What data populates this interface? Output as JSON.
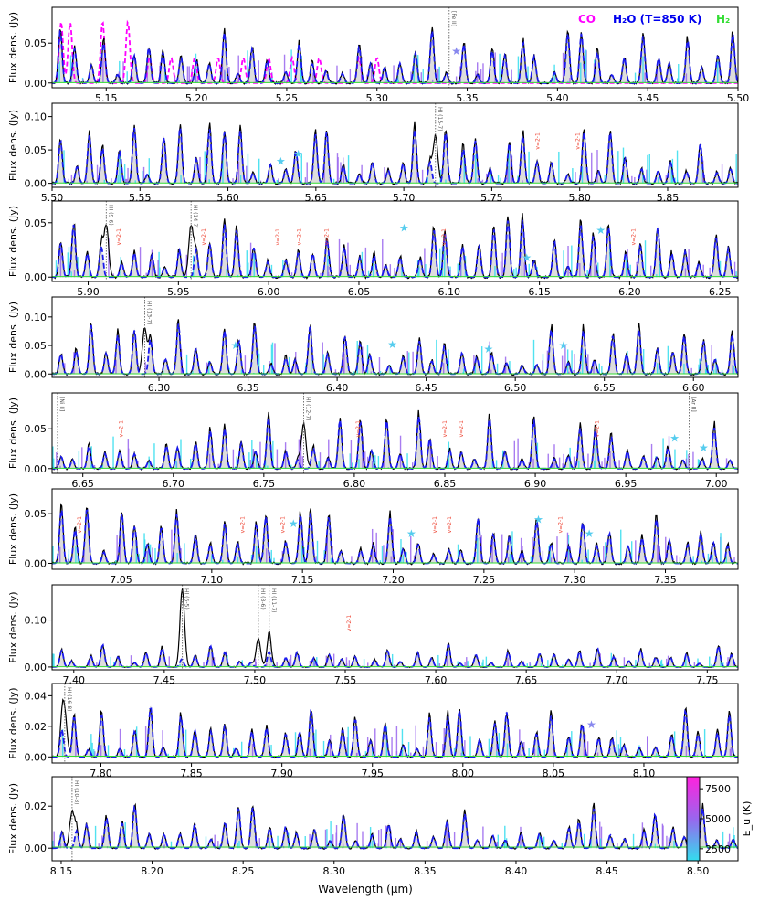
{
  "chart_data": {
    "type": "line",
    "y_axis_label": "Flux dens. (Jy)",
    "x_axis_label": "Wavelength (µm)",
    "legend": [
      {
        "label": "CO",
        "color": "#ff00ff"
      },
      {
        "label": "H2O (T=850 K)",
        "color": "#0000ee"
      },
      {
        "label": "H2",
        "color": "#33dd33"
      }
    ],
    "colorbar": {
      "label": "E_u (K)",
      "ticks": [
        2500,
        5000,
        7500
      ],
      "range": [
        1500,
        8500
      ],
      "colors": [
        "#33ddee",
        "#9966ee",
        "#ff22dd"
      ]
    },
    "series_names": [
      "observed",
      "H2O model",
      "CO model",
      "H2 model",
      "line strengths"
    ],
    "panels": [
      {
        "xlim": [
          5.12,
          5.5
        ],
        "ylim": [
          -0.006,
          0.095
        ],
        "yticks": [
          0.0,
          0.05
        ],
        "xticks": [
          5.15,
          5.2,
          5.25,
          5.3,
          5.35,
          5.4,
          5.45,
          5.5
        ],
        "peak": 0.07,
        "co": true,
        "legend": true,
        "annotations": [
          {
            "x": 5.34,
            "label": "[Fe II]"
          }
        ],
        "stars": [
          {
            "x": 5.344,
            "y": 0.04,
            "color": "#8888ee"
          }
        ],
        "v21": []
      },
      {
        "xlim": [
          5.5,
          5.89
        ],
        "ylim": [
          -0.006,
          0.12
        ],
        "yticks": [
          0.0,
          0.05,
          0.1
        ],
        "xticks": [
          5.5,
          5.55,
          5.6,
          5.65,
          5.7,
          5.75,
          5.8,
          5.85
        ],
        "peak": 0.09,
        "annotations": [
          {
            "x": 5.718,
            "label": "HI (15-7)"
          }
        ],
        "stars": [
          {
            "x": 5.63,
            "y": 0.033,
            "color": "#55ccee"
          },
          {
            "x": 5.64,
            "y": 0.044,
            "color": "#55ccee"
          }
        ],
        "v21": [
          5.777,
          5.8
        ]
      },
      {
        "xlim": [
          5.88,
          6.26
        ],
        "ylim": [
          -0.004,
          0.07
        ],
        "yticks": [
          0.0,
          0.05
        ],
        "xticks": [
          5.9,
          5.95,
          6.0,
          6.05,
          6.1,
          6.15,
          6.2,
          6.25
        ],
        "peak": 0.06,
        "annotations": [
          {
            "x": 5.91,
            "label": "HI (9-6)"
          },
          {
            "x": 5.957,
            "label": "HI (14-7)"
          }
        ],
        "stars": [
          {
            "x": 6.075,
            "y": 0.045,
            "color": "#55ccee"
          },
          {
            "x": 6.143,
            "y": 0.018,
            "color": "#55ccee"
          },
          {
            "x": 6.184,
            "y": 0.043,
            "color": "#55ccee"
          }
        ],
        "v21": [
          5.918,
          5.965,
          6.006,
          6.018,
          6.033,
          6.098,
          6.203
        ]
      },
      {
        "xlim": [
          6.24,
          6.625
        ],
        "ylim": [
          -0.006,
          0.135
        ],
        "yticks": [
          0.0,
          0.05,
          0.1
        ],
        "xticks": [
          6.3,
          6.35,
          6.4,
          6.45,
          6.5,
          6.55,
          6.6
        ],
        "peak": 0.1,
        "annotations": [
          {
            "x": 6.292,
            "label": "HI (13-7)"
          }
        ],
        "stars": [
          {
            "x": 6.343,
            "y": 0.05,
            "color": "#55ccee"
          },
          {
            "x": 6.431,
            "y": 0.052,
            "color": "#55ccee"
          },
          {
            "x": 6.485,
            "y": 0.044,
            "color": "#55ccee"
          },
          {
            "x": 6.527,
            "y": 0.05,
            "color": "#55ccee"
          }
        ],
        "v21": []
      },
      {
        "xlim": [
          6.633,
          7.012
        ],
        "ylim": [
          -0.006,
          0.095
        ],
        "yticks": [
          0.0,
          0.05
        ],
        "xticks": [
          6.65,
          6.7,
          6.75,
          6.8,
          6.85,
          6.9,
          6.95,
          7.0
        ],
        "peak": 0.07,
        "annotations": [
          {
            "x": 6.636,
            "label": "[Ni II]"
          },
          {
            "x": 6.772,
            "label": "HI (12-7)"
          },
          {
            "x": 6.985,
            "label": "[Ar II]"
          }
        ],
        "stars": [
          {
            "x": 6.977,
            "y": 0.038,
            "color": "#55ccee"
          },
          {
            "x": 6.993,
            "y": 0.026,
            "color": "#55ccee"
          }
        ],
        "v21": [
          6.672,
          6.803,
          6.851,
          6.86,
          6.935
        ]
      },
      {
        "xlim": [
          7.012,
          7.39
        ],
        "ylim": [
          -0.006,
          0.075
        ],
        "yticks": [
          0.0,
          0.05
        ],
        "xticks": [
          7.05,
          7.1,
          7.15,
          7.2,
          7.25,
          7.3,
          7.35
        ],
        "peak": 0.06,
        "annotations": [],
        "stars": [
          {
            "x": 7.145,
            "y": 0.04,
            "color": "#55ccee"
          },
          {
            "x": 7.21,
            "y": 0.03,
            "color": "#55ccee"
          },
          {
            "x": 7.28,
            "y": 0.044,
            "color": "#55ccee"
          },
          {
            "x": 7.308,
            "y": 0.03,
            "color": "#55ccee"
          }
        ],
        "v21": [
          7.028,
          7.118,
          7.14,
          7.224,
          7.232,
          7.293
        ]
      },
      {
        "xlim": [
          7.388,
          7.767
        ],
        "ylim": [
          -0.006,
          0.175
        ],
        "yticks": [
          0.0,
          0.1
        ],
        "xticks": [
          7.4,
          7.45,
          7.5,
          7.55,
          7.6,
          7.65,
          7.7,
          7.75
        ],
        "peak": 0.05,
        "annotations": [
          {
            "x": 7.46,
            "label": "HI (6-5)"
          },
          {
            "x": 7.502,
            "label": "HI (8-6)"
          },
          {
            "x": 7.508,
            "label": "HI (11-7)"
          }
        ],
        "stars": [],
        "v21": [
          7.553
        ]
      },
      {
        "xlim": [
          7.773,
          8.152
        ],
        "ylim": [
          -0.004,
          0.048
        ],
        "yticks": [
          0.0,
          0.02,
          0.04
        ],
        "xticks": [
          7.8,
          7.85,
          7.9,
          7.95,
          8.0,
          8.05,
          8.1
        ],
        "peak": 0.035,
        "annotations": [
          {
            "x": 7.78,
            "label": "HI (16-8)"
          }
        ],
        "stars": [
          {
            "x": 8.071,
            "y": 0.021,
            "color": "#8888ee"
          }
        ],
        "v21": []
      },
      {
        "xlim": [
          8.145,
          8.522
        ],
        "ylim": [
          -0.006,
          0.034
        ],
        "yticks": [
          0.0,
          0.02
        ],
        "xticks": [
          8.15,
          8.2,
          8.25,
          8.3,
          8.35,
          8.4,
          8.45,
          8.5
        ],
        "peak": 0.022,
        "annotations": [
          {
            "x": 8.156,
            "label": "HI (10-8)"
          }
        ],
        "stars": [],
        "v21": []
      }
    ]
  },
  "labels": {
    "v21": "v=2-1",
    "legend_co": "CO",
    "legend_h2o": "H₂O (T=850 K)",
    "legend_h2": "H₂",
    "colorbar_label": "E_u (K)",
    "star_glyph": "★"
  }
}
